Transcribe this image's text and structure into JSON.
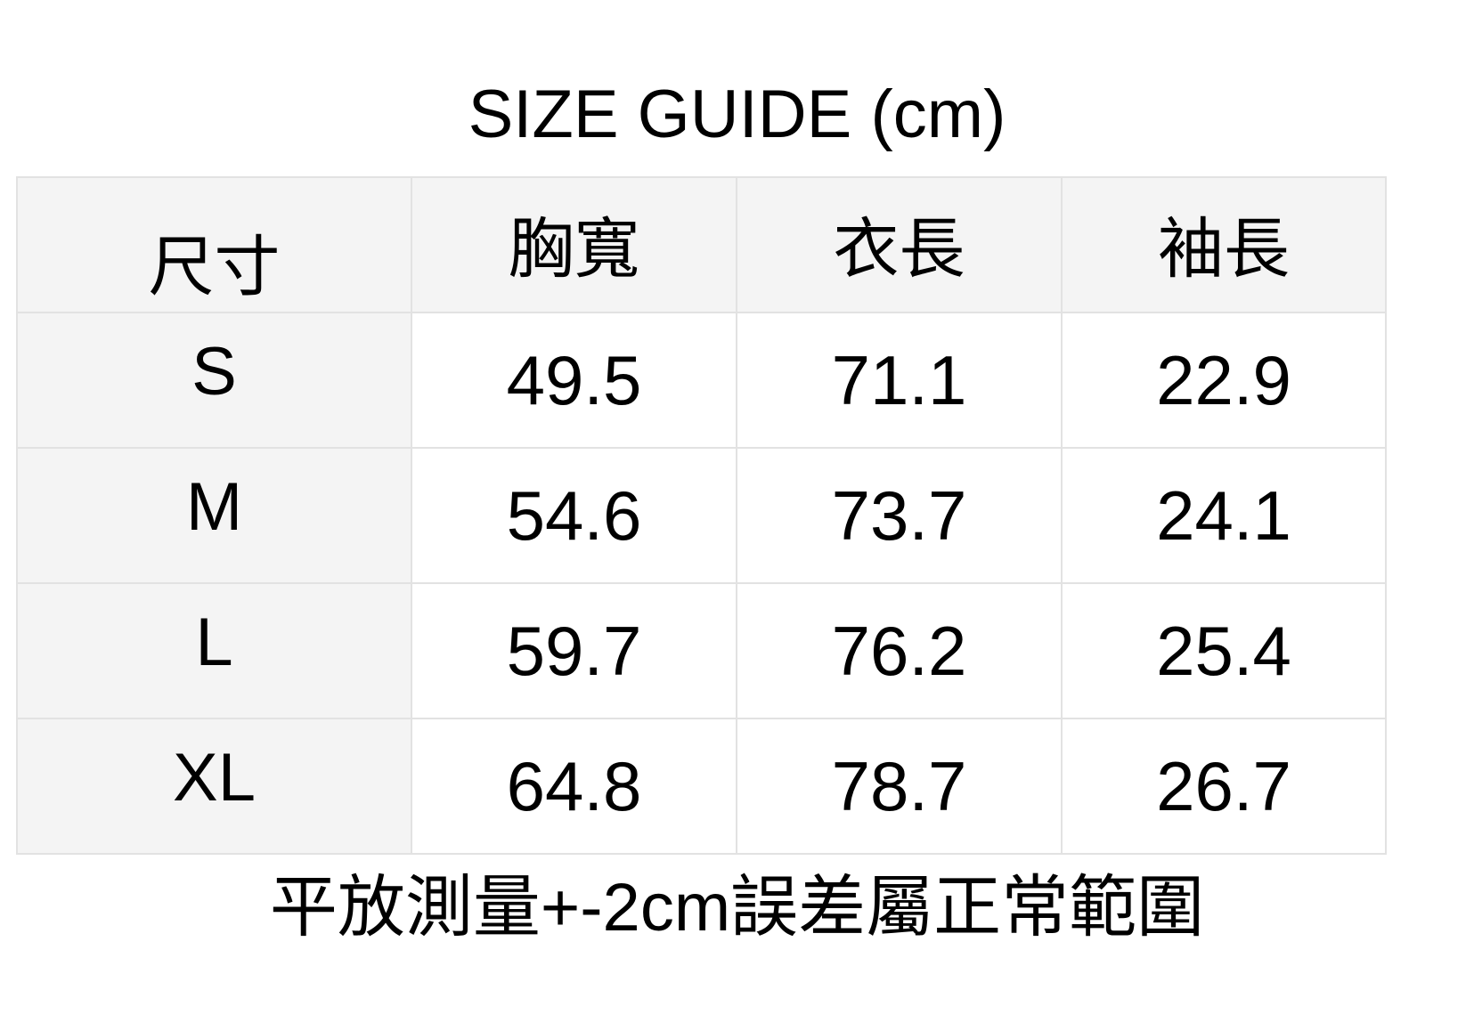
{
  "title": "SIZE GUIDE (cm)",
  "table": {
    "headers": [
      "尺寸",
      "胸寬",
      "衣長",
      "袖長"
    ],
    "rows": [
      {
        "size": "S",
        "values": [
          "49.5",
          "71.1",
          "22.9"
        ]
      },
      {
        "size": "M",
        "values": [
          "54.6",
          "73.7",
          "24.1"
        ]
      },
      {
        "size": "L",
        "values": [
          "59.7",
          "76.2",
          "25.4"
        ]
      },
      {
        "size": "XL",
        "values": [
          "64.8",
          "78.7",
          "26.7"
        ]
      }
    ]
  },
  "note": "平放測量+-2cm誤差屬正常範圍",
  "colors": {
    "header_bg": "#f4f4f4",
    "border": "#e2e2e2",
    "text": "#000000"
  }
}
